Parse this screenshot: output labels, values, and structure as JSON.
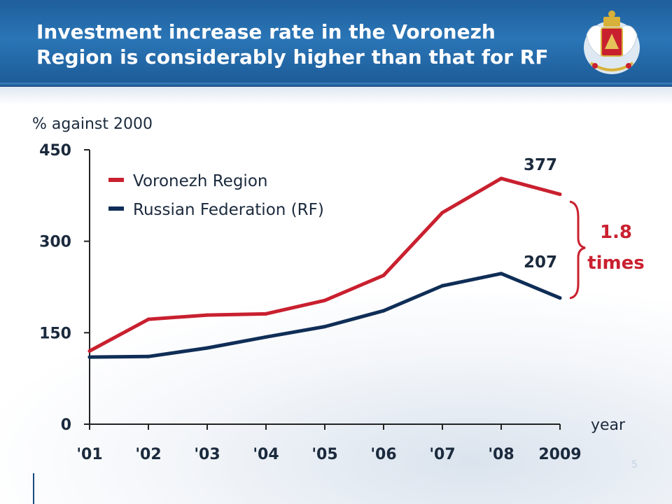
{
  "slide": {
    "title": "Investment increase rate in the Voronezh Region is considerably higher than that for RF",
    "page_number": "5"
  },
  "emblem": {
    "icon": "voronezh-coat-of-arms-icon"
  },
  "colors": {
    "voronezh": "#c9202f",
    "rf": "#0f2e57",
    "header": "#2a75b6"
  },
  "chart_data": {
    "type": "line",
    "ylabel": "% against 2000",
    "xlabel": "year",
    "ylim": [
      0,
      450
    ],
    "yticks": [
      0,
      150,
      300,
      450
    ],
    "categories": [
      "'01",
      "'02",
      "'03",
      "'04",
      "'05",
      "'06",
      "'07",
      "'08",
      "2009"
    ],
    "series": [
      {
        "name": "Voronezh Region",
        "color": "#c9202f",
        "values": [
          120,
          172,
          179,
          181,
          203,
          244,
          347,
          403,
          377
        ]
      },
      {
        "name": "Russian Federation (RF)",
        "color": "#0f2e57",
        "values": [
          110,
          111,
          125,
          143,
          160,
          186,
          227,
          247,
          207
        ]
      }
    ],
    "legend": "top-left",
    "annotations": {
      "voronezh_end_label": "377",
      "rf_end_label": "207",
      "ratio_value": "1.8",
      "ratio_unit": "times"
    }
  }
}
